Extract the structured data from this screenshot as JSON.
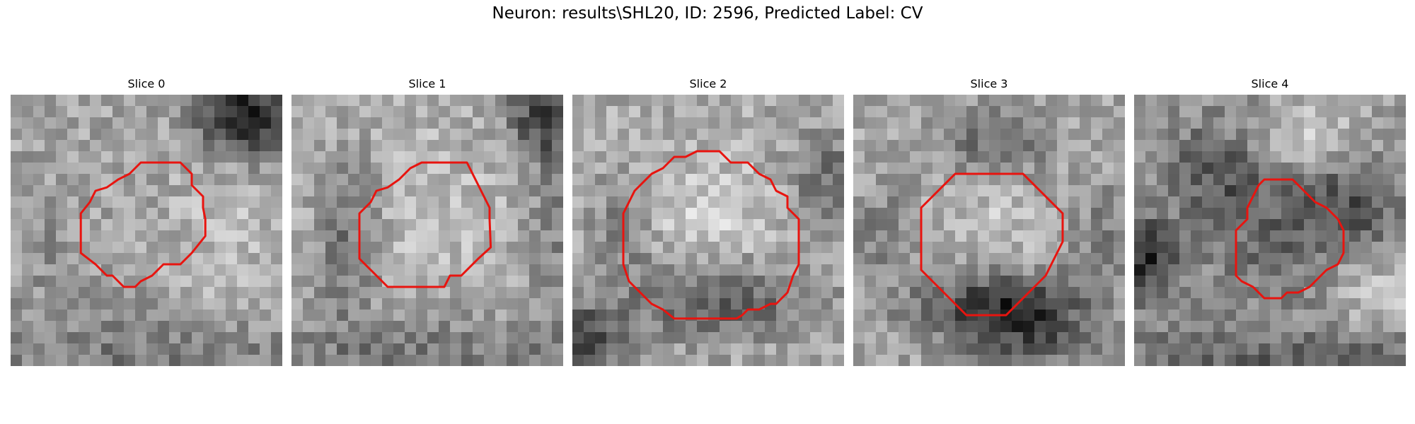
{
  "figure": {
    "title": "Neuron: results\\SHL20, ID: 2596, Predicted Label: CV"
  },
  "slices": [
    {
      "label": "Slice 0"
    },
    {
      "label": "Slice 1"
    },
    {
      "label": "Slice 2"
    },
    {
      "label": "Slice 3"
    },
    {
      "label": "Slice 4"
    }
  ],
  "contour_color": "#e8140f",
  "colormap": "grayscale"
}
